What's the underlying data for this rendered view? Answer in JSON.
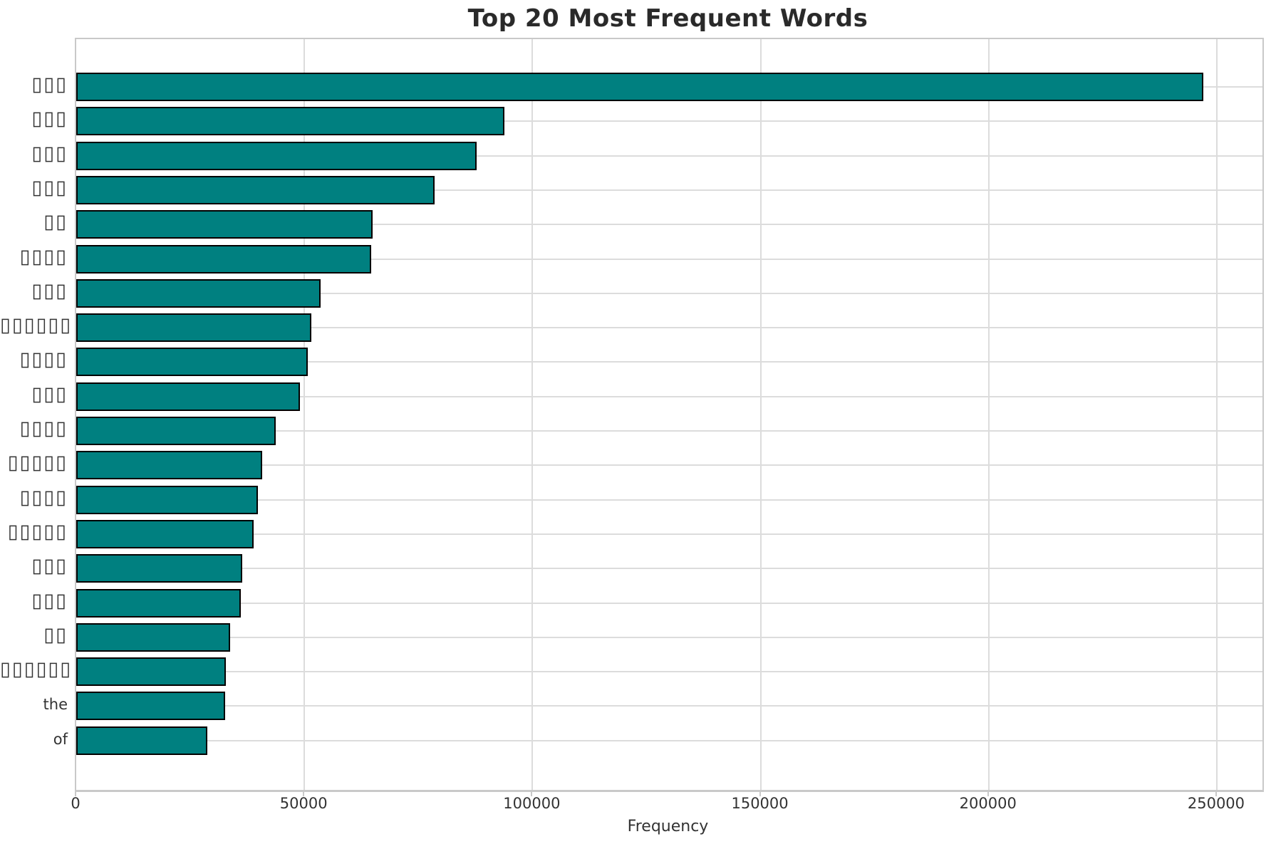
{
  "title": "Top 20 Most Frequent Words",
  "chart_data": {
    "type": "bar",
    "orientation": "horizontal",
    "title": "Top 20 Most Frequent Words",
    "xlabel": "Frequency",
    "ylabel": "",
    "categories": [
      "▯▯▯",
      "▯▯▯",
      "▯▯▯",
      "▯▯▯",
      "▯▯",
      "▯▯▯▯",
      "▯▯▯",
      "▯▯▯▯▯▯",
      "▯▯▯▯",
      "▯▯▯",
      "▯▯▯▯",
      "▯▯▯▯▯",
      "▯▯▯▯",
      "▯▯▯▯▯",
      "▯▯▯",
      "▯▯▯",
      "▯▯",
      "▯▯▯▯▯▯",
      "the",
      "of"
    ],
    "values": [
      247000,
      93900,
      87800,
      78600,
      65000,
      64600,
      53600,
      51600,
      50700,
      49000,
      43700,
      40700,
      39800,
      38900,
      36400,
      36000,
      33700,
      32800,
      32600,
      28700
    ],
    "xticks": [
      0,
      50000,
      100000,
      150000,
      200000,
      250000
    ],
    "xlim": [
      0,
      260000
    ],
    "grid": true,
    "legend": "none",
    "bar_color": "#008080",
    "bar_edge_color": "#000000",
    "grid_color": "#dcdcdc",
    "note_on_categories": "First 18 category labels are rendered as missing-glyph (tofu) boxes in the image; only 'the' and 'of' are readable."
  }
}
